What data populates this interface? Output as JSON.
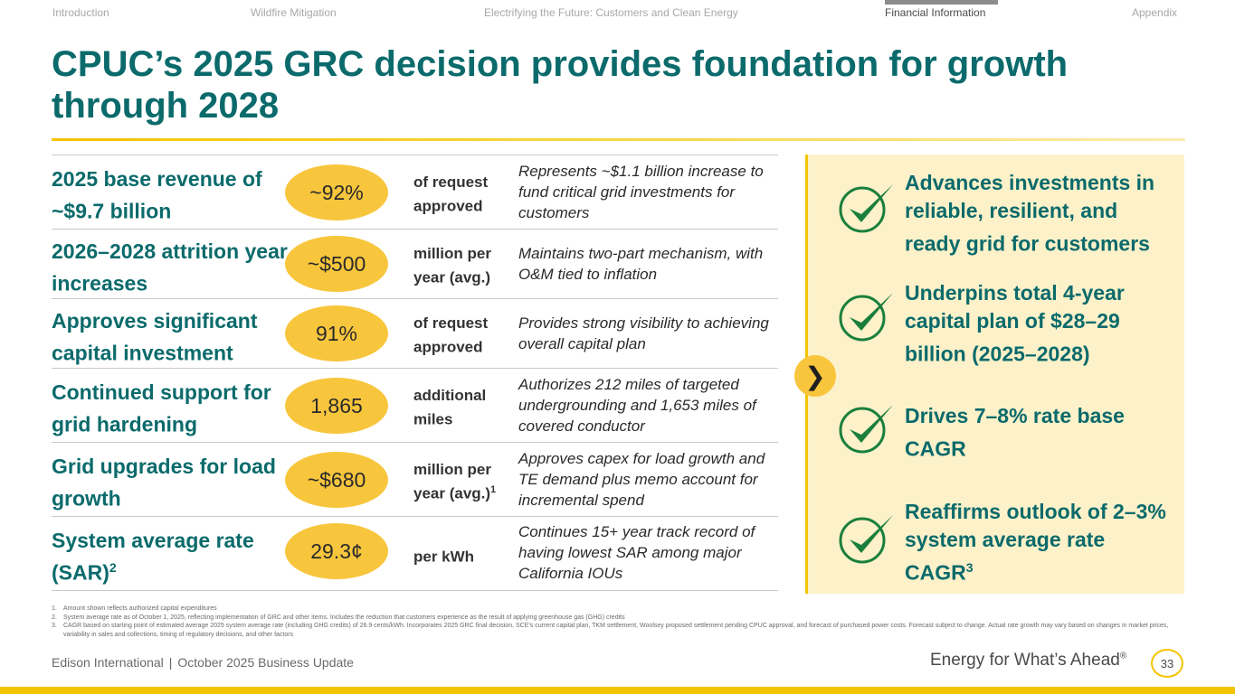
{
  "nav": {
    "tabs": [
      {
        "label": "Introduction"
      },
      {
        "label": "Wildfire Mitigation"
      },
      {
        "label": "Electrifying the Future: Customers and Clean Energy"
      },
      {
        "label": "Financial Information"
      },
      {
        "label": "Appendix"
      }
    ],
    "active": "Financial Information"
  },
  "title": "CPUC’s 2025 GRC decision provides foundation for growth through 2028",
  "rows": [
    {
      "label": "2025 base revenue of ~$9.7 billion",
      "label_sup": "",
      "value": "~92%",
      "unit": "of request approved",
      "unit_sup": "",
      "desc": "Represents ~$1.1 billion increase to fund critical grid investments for customers"
    },
    {
      "label": "2026–2028 attrition year increases",
      "label_sup": "",
      "value": "~$500",
      "unit": "million per year (avg.)",
      "unit_sup": "",
      "desc": "Maintains two-part mechanism, with O&M tied to inflation"
    },
    {
      "label": "Approves significant capital investment",
      "label_sup": "",
      "value": "91%",
      "unit": "of request approved",
      "unit_sup": "",
      "desc": "Provides strong visibility to achieving overall capital plan"
    },
    {
      "label": "Continued support for grid hardening",
      "label_sup": "",
      "value": "1,865",
      "unit": "additional miles",
      "unit_sup": "",
      "desc": "Authorizes 212 miles of targeted undergrounding and 1,653 miles of covered conductor"
    },
    {
      "label": "Grid upgrades for load growth",
      "label_sup": "",
      "value": "~$680",
      "unit": "million per year (avg.)",
      "unit_sup": "1",
      "desc": "Approves capex for load growth and TE demand plus memo account for incremental spend"
    },
    {
      "label": "System average rate (SAR)",
      "label_sup": "2",
      "value": "29.3¢",
      "unit": "per kWh",
      "unit_sup": "",
      "desc": "Continues 15+ year track record of having lowest SAR among major California IOUs"
    }
  ],
  "panel": {
    "chevron_icon": "chevron-right-icon",
    "points": [
      {
        "text": "Advances investments in reliable, resilient, and ready grid for customers",
        "sup": ""
      },
      {
        "text": "Underpins total 4-year capital plan of $28–29 billion (2025–2028)",
        "sup": ""
      },
      {
        "text": "Drives 7–8% rate base CAGR",
        "sup": ""
      },
      {
        "text": "Reaffirms outlook of 2–3% system average rate CAGR",
        "sup": "3"
      }
    ],
    "check_color": "#1a7f3c"
  },
  "footnotes": [
    {
      "num": "1.",
      "text": "Amount shown reflects authorized capital expenditures"
    },
    {
      "num": "2.",
      "text": "System average rate as of October 1, 2025, reflecting implementation of GRC and other items. Includes the reduction that customers experience as the result of applying greenhouse gas (GHG) credits"
    },
    {
      "num": "3.",
      "text": "CAGR based on starting point of estimated average 2025 system average rate (including GHG credits) of 26.9 cents/kWh. Incorporates 2025 GRC final decision, SCE’s current capital plan, TKM settlement, Woolsey proposed settlement pending CPUC approval, and forecast of purchased power costs. Forecast subject to change. Actual rate growth may vary based on changes in market prices, variability in sales and collections, timing of regulatory decisions, and other factors"
    }
  ],
  "footer": {
    "company": "Edison International",
    "separator": "|",
    "event": "October 2025 Business Update",
    "tagline": "Energy for What’s Ahead",
    "tagline_mark": "®",
    "page": "33"
  },
  "colors": {
    "teal": "#0b6a6b",
    "gold": "#f5c400",
    "pill": "#f8c63d",
    "panel": "#fdf1c9"
  }
}
